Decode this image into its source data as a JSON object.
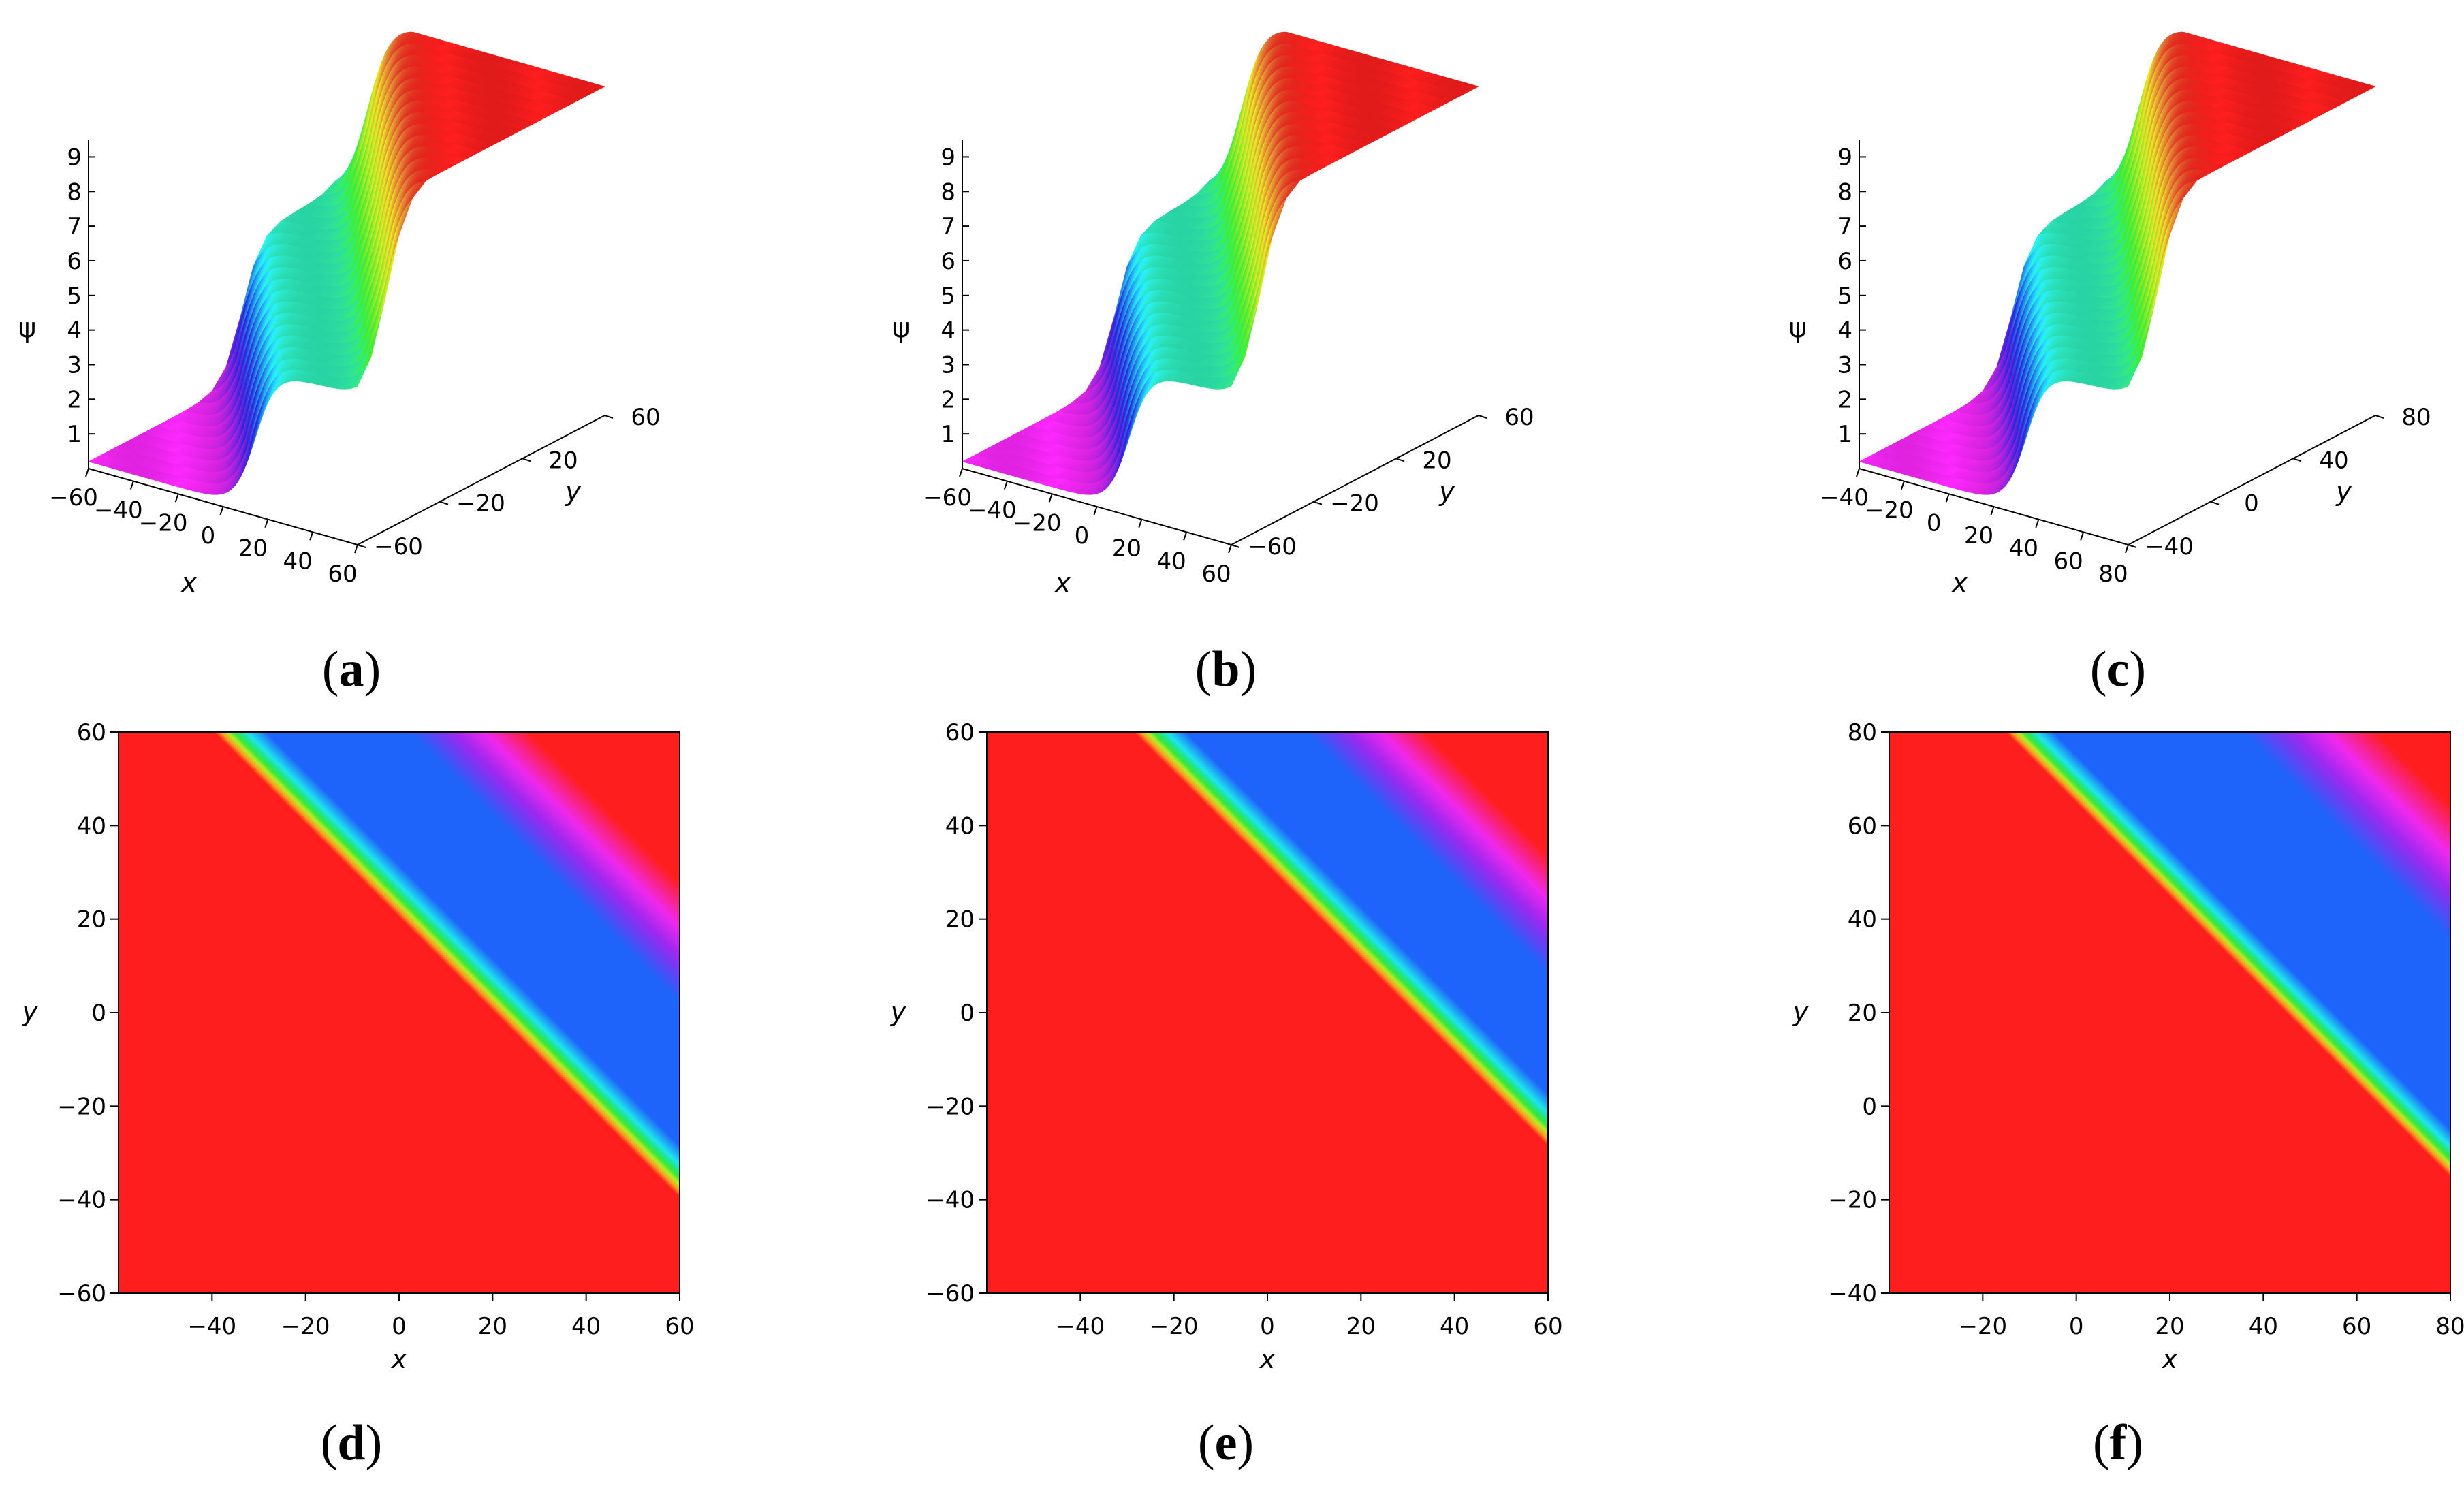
{
  "chart_data": [
    {
      "id": "a",
      "caption_label": "a",
      "type": "surface3d",
      "zlabel": "ψ",
      "xlabel": "x",
      "ylabel": "y",
      "xlim": [
        -60,
        60
      ],
      "ylim": [
        -60,
        60
      ],
      "zlim": [
        0,
        9.5
      ],
      "xticks": [
        "−60",
        "−40",
        "−20",
        "0",
        "20",
        "40",
        "60"
      ],
      "yticks": [
        "60",
        "20",
        "−20",
        "−60"
      ],
      "zticks": [
        "1",
        "2",
        "3",
        "4",
        "5",
        "6",
        "7",
        "8",
        "9"
      ],
      "levels": {
        "low": 0.2,
        "mid": 4.3,
        "high": 9.6
      }
    },
    {
      "id": "b",
      "caption_label": "b",
      "type": "surface3d",
      "zlabel": "ψ",
      "xlabel": "x",
      "ylabel": "y",
      "xlim": [
        -60,
        60
      ],
      "ylim": [
        -60,
        60
      ],
      "zlim": [
        0,
        9.5
      ],
      "xticks": [
        "−60",
        "−40",
        "−20",
        "0",
        "20",
        "40",
        "60"
      ],
      "yticks": [
        "60",
        "20",
        "−20",
        "−60"
      ],
      "zticks": [
        "1",
        "2",
        "3",
        "4",
        "5",
        "6",
        "7",
        "8",
        "9"
      ],
      "levels": {
        "low": 0.2,
        "mid": 4.3,
        "high": 9.6
      }
    },
    {
      "id": "c",
      "caption_label": "c",
      "type": "surface3d",
      "zlabel": "ψ",
      "xlabel": "x",
      "ylabel": "y",
      "xlim": [
        -40,
        80
      ],
      "ylim": [
        -40,
        80
      ],
      "zlim": [
        0,
        9.5
      ],
      "xticks": [
        "−40",
        "−20",
        "0",
        "20",
        "40",
        "60",
        "80"
      ],
      "yticks": [
        "80",
        "40",
        "0",
        "−40"
      ],
      "zticks": [
        "1",
        "2",
        "3",
        "4",
        "5",
        "6",
        "7",
        "8",
        "9"
      ],
      "levels": {
        "low": 0.2,
        "mid": 4.3,
        "high": 9.6
      }
    },
    {
      "id": "d",
      "caption_label": "d",
      "type": "heatmap",
      "xlabel": "x",
      "ylabel": "y",
      "xlim": [
        -60,
        60
      ],
      "ylim": [
        -60,
        60
      ],
      "xticks": [
        -40,
        -20,
        0,
        20,
        40,
        60
      ],
      "yticks": [
        -60,
        -40,
        -20,
        0,
        20,
        40,
        60
      ],
      "xtick_labels": [
        "−40",
        "−20",
        "0",
        "20",
        "40",
        "60"
      ],
      "ytick_labels": [
        "−60",
        "−40",
        "−20",
        "0",
        "20",
        "40",
        "60"
      ],
      "band": {
        "kink1_intercept": 26,
        "kink2_intercept": 75,
        "w1": 3.5,
        "w2": 8
      }
    },
    {
      "id": "e",
      "caption_label": "e",
      "type": "heatmap",
      "xlabel": "x",
      "ylabel": "y",
      "xlim": [
        -60,
        60
      ],
      "ylim": [
        -60,
        60
      ],
      "xticks": [
        -40,
        -20,
        0,
        20,
        40,
        60
      ],
      "yticks": [
        -60,
        -40,
        -20,
        0,
        20,
        40,
        60
      ],
      "xtick_labels": [
        "−40",
        "−20",
        "0",
        "20",
        "40",
        "60"
      ],
      "ytick_labels": [
        "−60",
        "−40",
        "−20",
        "0",
        "20",
        "40",
        "60"
      ],
      "band": {
        "kink1_intercept": 37,
        "kink2_intercept": 81,
        "w1": 3.5,
        "w2": 8
      }
    },
    {
      "id": "f",
      "caption_label": "f",
      "type": "heatmap",
      "xlabel": "x",
      "ylabel": "y",
      "xlim": [
        -40,
        80
      ],
      "ylim": [
        -40,
        80
      ],
      "xticks": [
        -20,
        0,
        20,
        40,
        60,
        80
      ],
      "yticks": [
        -40,
        -20,
        0,
        20,
        40,
        60,
        80
      ],
      "xtick_labels": [
        "−20",
        "0",
        "20",
        "40",
        "60",
        "80"
      ],
      "ytick_labels": [
        "−40",
        "−20",
        "0",
        "20",
        "40",
        "60",
        "80"
      ],
      "band": {
        "kink1_intercept": 70,
        "kink2_intercept": 130,
        "w1": 3.2,
        "w2": 9
      }
    }
  ]
}
